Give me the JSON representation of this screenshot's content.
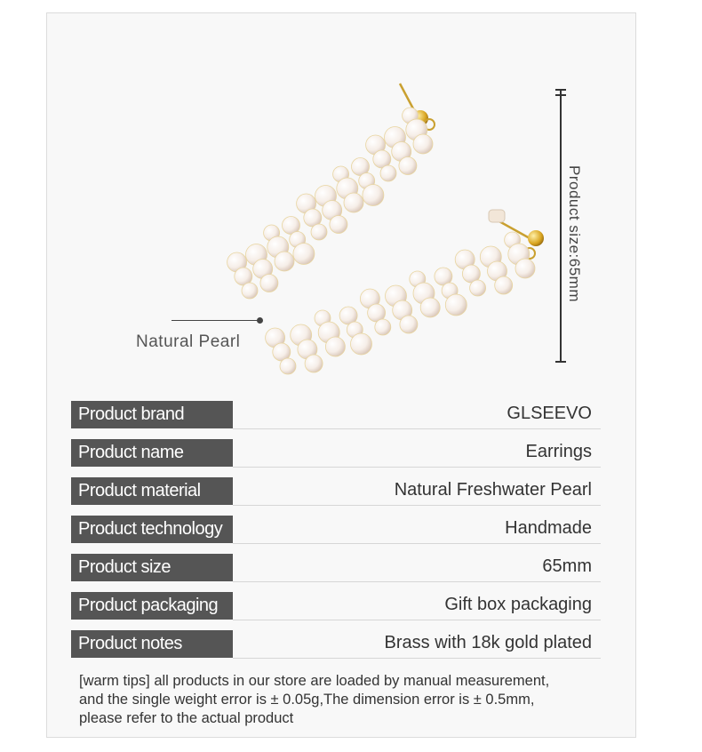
{
  "product_image": {
    "callout_label": "Natural  Pearl",
    "dimension_label": "Product size:65mm"
  },
  "specs": [
    {
      "label": "Product brand",
      "value": "GLSEEVO"
    },
    {
      "label": "Product name",
      "value": "Earrings"
    },
    {
      "label": "Product material",
      "value": "Natural Freshwater Pearl"
    },
    {
      "label": "Product technology",
      "value": "Handmade"
    },
    {
      "label": "Product size",
      "value": "65mm"
    },
    {
      "label": "Product packaging",
      "value": "Gift box packaging"
    },
    {
      "label": "Product notes",
      "value": "Brass with 18k gold plated"
    }
  ],
  "warm_tips": {
    "line1": "[warm tips] all products in our store are loaded by manual measurement,",
    "line2": "and the single weight error is ± 0.05g,The dimension error is ± 0.5mm,",
    "line3": "please refer to the actual product"
  }
}
